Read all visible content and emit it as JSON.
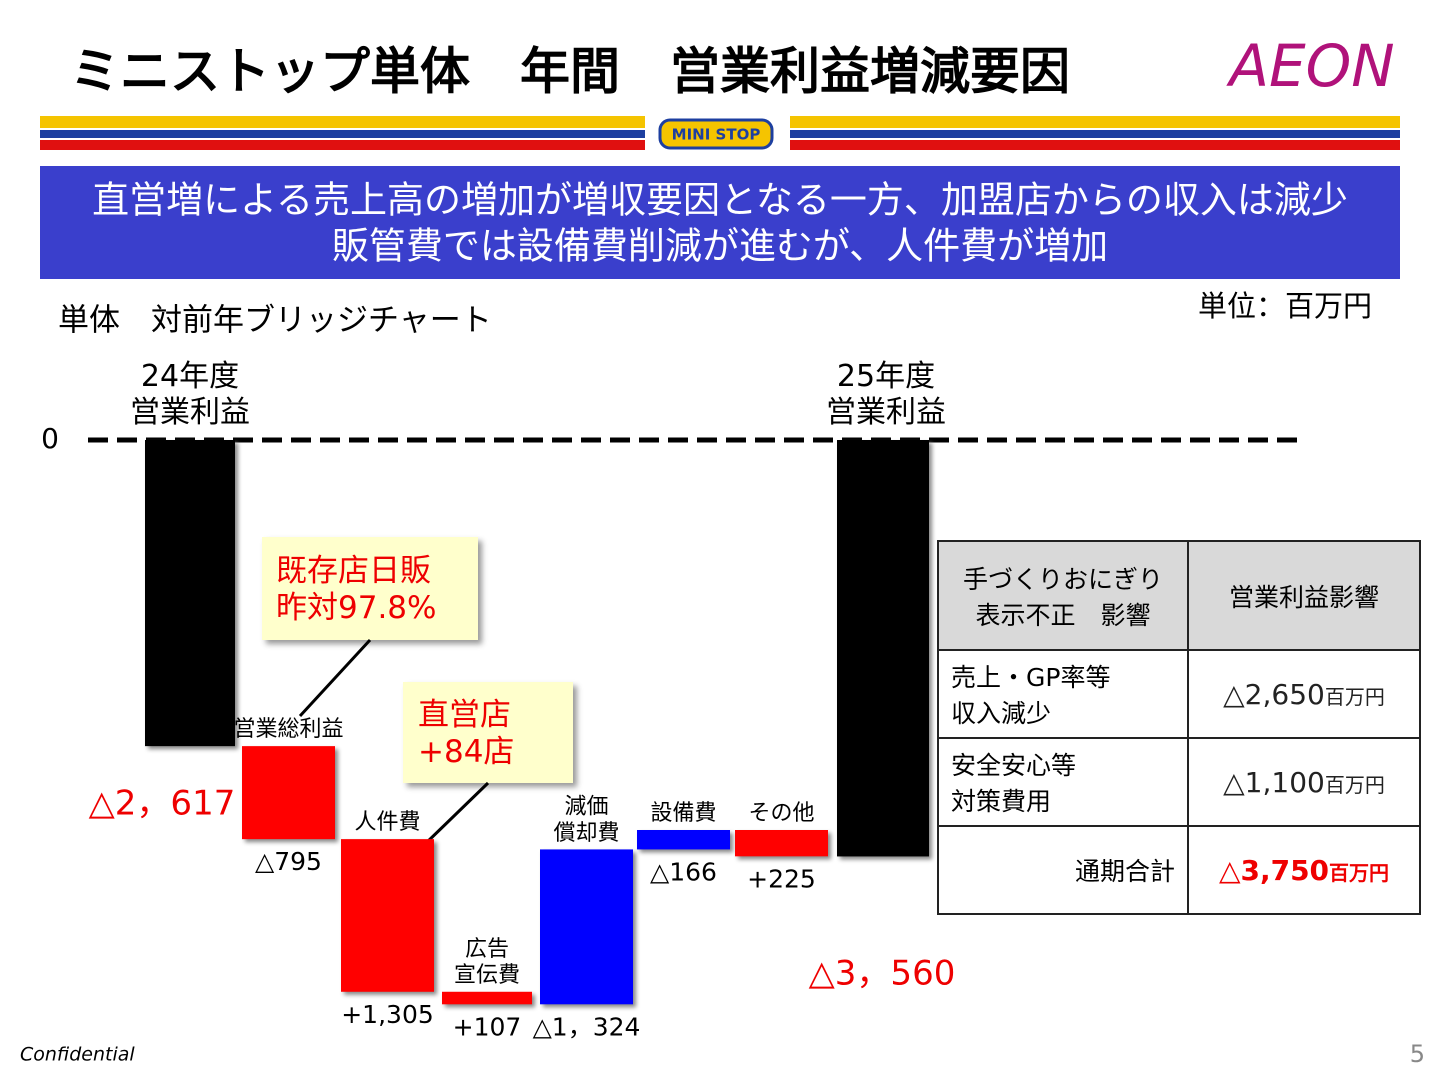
{
  "header": {
    "title": "ミニストップ単体　年間　営業利益増減要因",
    "logo": "AEON",
    "badge": "MINI STOP"
  },
  "banner": [
    "直営増による売上高の増加が増収要因となる一方、加盟店からの収入は減少",
    "販管費では設備費削減が進むが、人件費が増加"
  ],
  "chart_data": {
    "type": "waterfall",
    "subtitle": "単体　対前年ブリッジチャート",
    "unit_label": "単位：百万円",
    "categories": [
      "24年度\n営業利益",
      "営業総利益",
      "人件費",
      "広告\n宣伝費",
      "減価\n償却費",
      "設備費",
      "その他",
      "25年度\n営業利益"
    ],
    "values": [
      -2617,
      -795,
      1305,
      107,
      -1324,
      -166,
      225,
      -3560
    ],
    "value_labels": [
      "△2，617",
      "△795",
      "+1,305",
      "+107",
      "△1，324",
      "△166",
      "+225",
      "△3，560"
    ],
    "colors": [
      "#000000",
      "#ff0000",
      "#ff0000",
      "#ff0000",
      "#0000ff",
      "#0000ff",
      "#ff0000",
      "#000000"
    ],
    "increase_color": "#0000ff",
    "ylim": [
      -4830,
      0
    ],
    "yticks": [
      0
    ],
    "callouts": [
      "既存店日販\n昨対97.8%",
      "直営店\n+84店"
    ]
  },
  "table": {
    "header": [
      "手づくりおにぎり\n表示不正　影響",
      "営業利益影響"
    ],
    "rows": [
      [
        "売上・GP率等\n収入減少",
        {
          "amount": "△2,650",
          "unit": "百万円"
        }
      ],
      [
        "安全安心等\n対策費用",
        {
          "amount": "△1,100",
          "unit": "百万円"
        }
      ],
      [
        "通期合計",
        {
          "amount": "△3,750",
          "unit": "百万円"
        }
      ]
    ]
  },
  "footer": {
    "confidential": "Confidential",
    "page": "5"
  }
}
